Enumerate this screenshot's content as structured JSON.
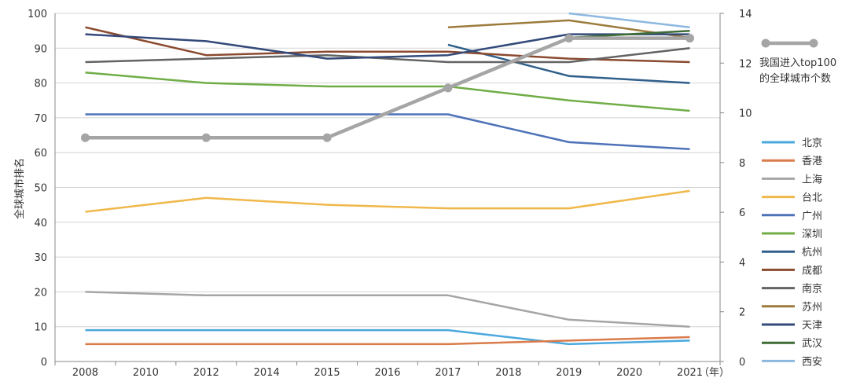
{
  "chart_data": {
    "type": "line",
    "x": [
      "2008",
      "2010",
      "2012",
      "2014",
      "2015",
      "2016",
      "2017",
      "2018",
      "2019",
      "2020",
      "2021"
    ],
    "x_unit": "（年）",
    "ylabel": "全球城市排名",
    "ylim": [
      0,
      100
    ],
    "yticks": [
      0,
      10,
      20,
      30,
      40,
      50,
      60,
      70,
      80,
      90,
      100
    ],
    "y2lim": [
      0,
      14
    ],
    "y2ticks": [
      0,
      2,
      4,
      6,
      8,
      10,
      12,
      14
    ],
    "grid": true,
    "series": [
      {
        "name": "北京",
        "color": "#4aa8dd",
        "values": [
          9,
          null,
          9,
          null,
          9,
          null,
          9,
          null,
          5,
          null,
          6
        ]
      },
      {
        "name": "香港",
        "color": "#d97b4a",
        "values": [
          5,
          null,
          5,
          null,
          5,
          null,
          5,
          null,
          6,
          null,
          7
        ]
      },
      {
        "name": "上海",
        "color": "#a5a5a5",
        "values": [
          20,
          null,
          19,
          null,
          19,
          null,
          19,
          null,
          12,
          null,
          10
        ]
      },
      {
        "name": "台北",
        "color": "#f0b84a",
        "values": [
          43,
          null,
          47,
          null,
          45,
          null,
          44,
          null,
          44,
          null,
          49
        ]
      },
      {
        "name": "广州",
        "color": "#4e72b8",
        "values": [
          71,
          null,
          71,
          null,
          71,
          null,
          71,
          null,
          63,
          null,
          61
        ]
      },
      {
        "name": "深圳",
        "color": "#70ad47",
        "values": [
          83,
          null,
          80,
          null,
          79,
          null,
          79,
          null,
          75,
          null,
          72
        ]
      },
      {
        "name": "杭州",
        "color": "#2f5f8a",
        "values": [
          null,
          null,
          null,
          null,
          null,
          null,
          91,
          null,
          82,
          null,
          80
        ]
      },
      {
        "name": "成都",
        "color": "#8b4a2f",
        "values": [
          96,
          null,
          88,
          null,
          89,
          null,
          89,
          null,
          87,
          null,
          86
        ]
      },
      {
        "name": "南京",
        "color": "#636363",
        "values": [
          86,
          null,
          87,
          null,
          88,
          null,
          86,
          null,
          86,
          null,
          90
        ]
      },
      {
        "name": "苏州",
        "color": "#9c7b3c",
        "values": [
          null,
          null,
          null,
          null,
          null,
          null,
          96,
          null,
          98,
          null,
          93
        ]
      },
      {
        "name": "天津",
        "color": "#334a7a",
        "values": [
          94,
          null,
          92,
          null,
          87,
          null,
          88,
          null,
          94,
          null,
          94
        ]
      },
      {
        "name": "武汉",
        "color": "#3f6b35",
        "values": [
          null,
          null,
          null,
          null,
          null,
          null,
          null,
          null,
          93,
          null,
          95
        ]
      },
      {
        "name": "西安",
        "color": "#8cb8e0",
        "values": [
          null,
          null,
          null,
          null,
          null,
          null,
          null,
          null,
          100,
          null,
          96
        ]
      }
    ],
    "secondary_series": {
      "name": "我国进入top100的全球城市个数",
      "name_lines": [
        "我国进入top100",
        "的全球城市个数"
      ],
      "color": "#a5a5a5",
      "points": [
        {
          "x": "2008",
          "value": 9
        },
        {
          "x": "2012",
          "value": 9
        },
        {
          "x": "2015",
          "value": 9
        },
        {
          "x": "2017",
          "value": 11
        },
        {
          "x": "2019",
          "value": 13
        },
        {
          "x": "2021",
          "value": 13
        }
      ]
    }
  }
}
